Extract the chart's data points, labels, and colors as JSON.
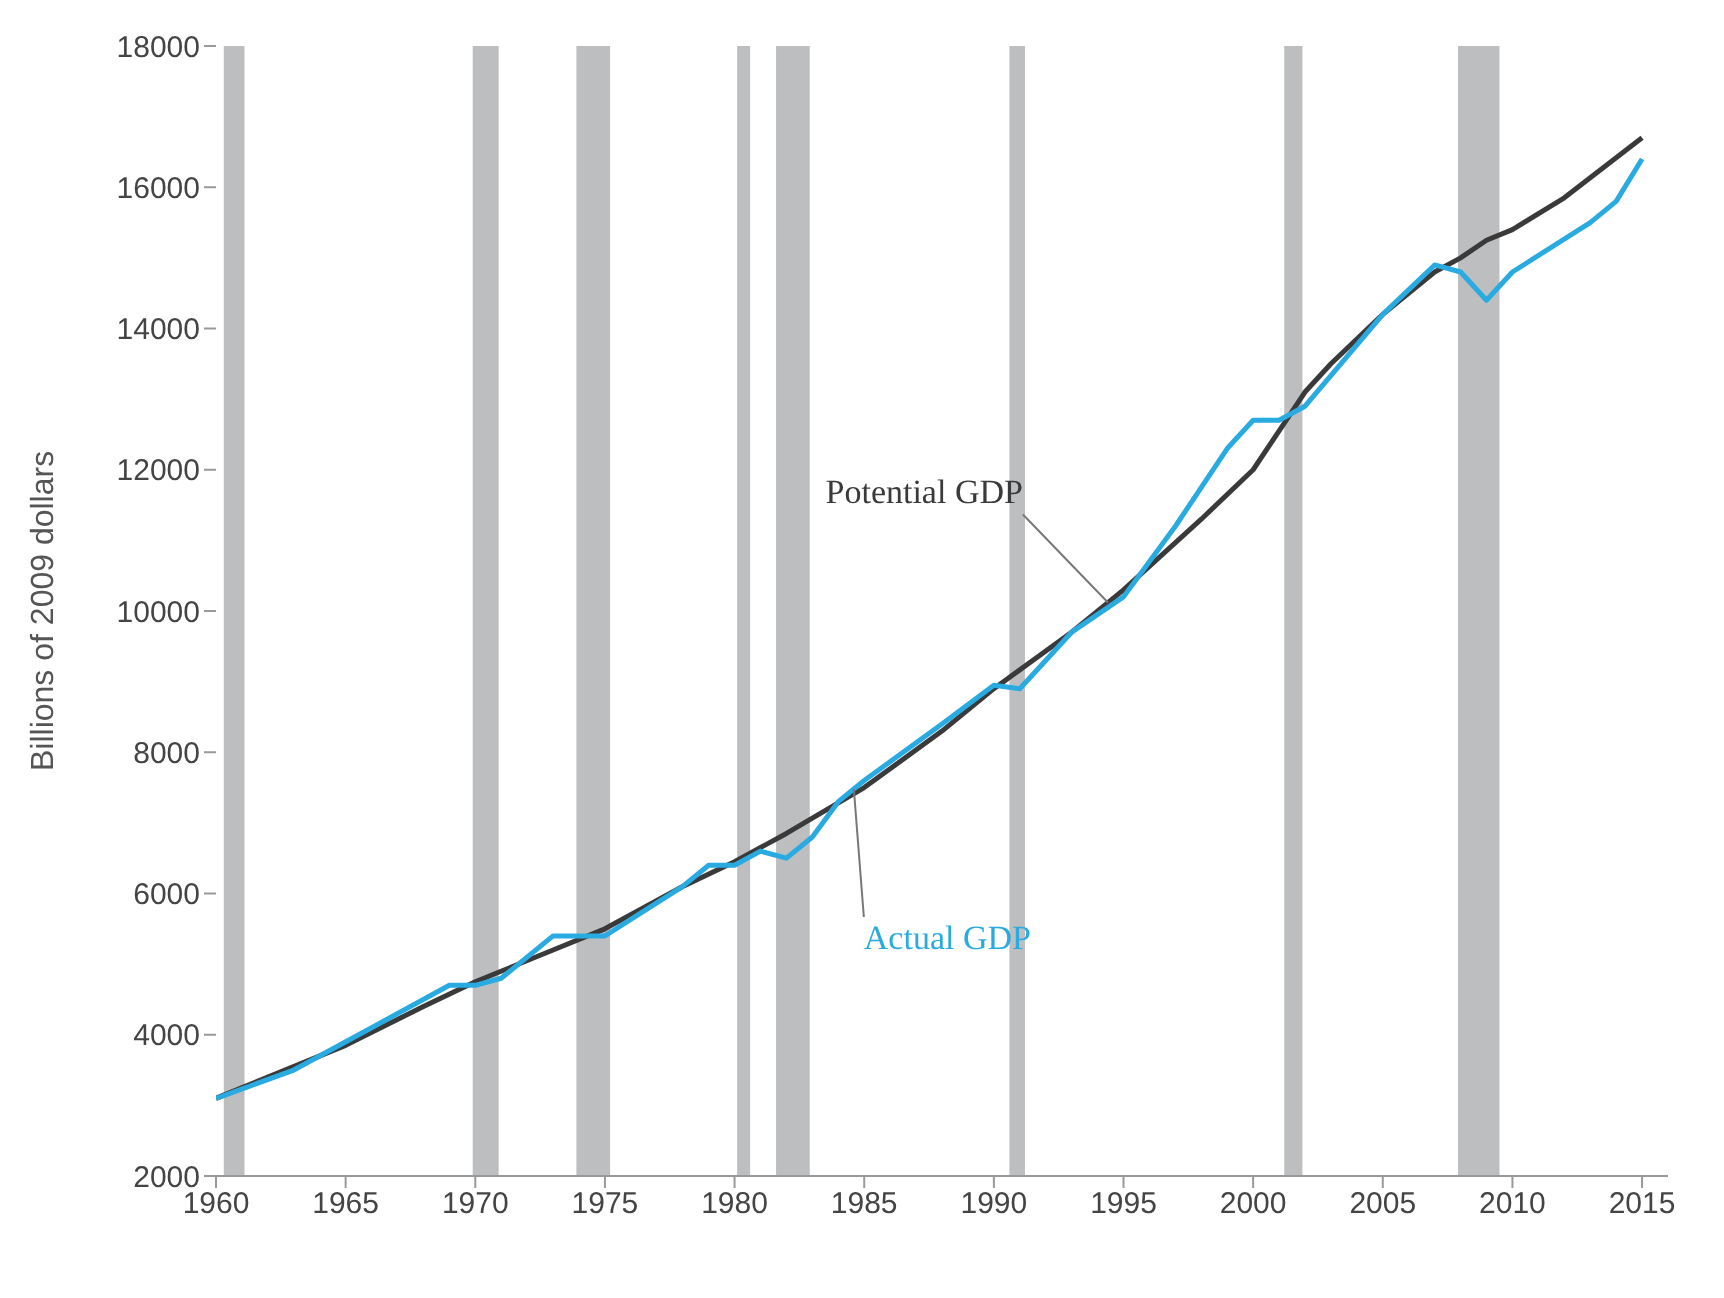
{
  "chart_data": {
    "type": "line",
    "ylabel": "Billions of 2009 dollars",
    "xlim": [
      1960,
      2016
    ],
    "xticks": [
      1960,
      1965,
      1970,
      1975,
      1980,
      1985,
      1990,
      1995,
      2000,
      2005,
      2010,
      2015
    ],
    "ylim": [
      2000,
      18000
    ],
    "yticks": [
      2000,
      4000,
      6000,
      8000,
      10000,
      12000,
      14000,
      16000,
      18000
    ],
    "grid": false,
    "legend": false,
    "marker": "none",
    "line_style": "solid",
    "bands": [
      {
        "axis": "x",
        "from": 1960.3,
        "to": 1961.1,
        "color": "#bcbec0"
      },
      {
        "axis": "x",
        "from": 1969.9,
        "to": 1970.9,
        "color": "#bcbec0"
      },
      {
        "axis": "x",
        "from": 1973.9,
        "to": 1975.2,
        "color": "#bcbec0"
      },
      {
        "axis": "x",
        "from": 1980.1,
        "to": 1980.6,
        "color": "#bcbec0"
      },
      {
        "axis": "x",
        "from": 1981.6,
        "to": 1982.9,
        "color": "#bcbec0"
      },
      {
        "axis": "x",
        "from": 1990.6,
        "to": 1991.2,
        "color": "#bcbec0"
      },
      {
        "axis": "x",
        "from": 2001.2,
        "to": 2001.9,
        "color": "#bcbec0"
      },
      {
        "axis": "x",
        "from": 2007.9,
        "to": 2009.5,
        "color": "#bcbec0"
      }
    ],
    "series": [
      {
        "color": "#3a3a3a",
        "x": [
          1960,
          1962,
          1965,
          1968,
          1970,
          1973,
          1975,
          1978,
          1980,
          1982,
          1985,
          1988,
          1990,
          1993,
          1995,
          1998,
          2000,
          2002,
          2003,
          2005,
          2007,
          2008,
          2009,
          2010,
          2012,
          2015
        ],
        "values": [
          3100,
          3400,
          3850,
          4400,
          4750,
          5200,
          5500,
          6100,
          6450,
          6850,
          7500,
          8300,
          8900,
          9700,
          10300,
          11300,
          12000,
          13100,
          13500,
          14200,
          14800,
          15000,
          15250,
          15400,
          15850,
          16700
        ]
      },
      {
        "color": "#29abe2",
        "x": [
          1960,
          1963,
          1966,
          1969,
          1970,
          1971,
          1973,
          1974,
          1975,
          1978,
          1979,
          1980,
          1981,
          1982,
          1983,
          1984,
          1985,
          1988,
          1990,
          1991,
          1993,
          1995,
          1997,
          1999,
          2000,
          2001,
          2002,
          2005,
          2007,
          2008,
          2009,
          2010,
          2013,
          2014,
          2015
        ],
        "values": [
          3100,
          3500,
          4100,
          4700,
          4700,
          4800,
          5400,
          5400,
          5400,
          6100,
          6400,
          6400,
          6600,
          6500,
          6800,
          7300,
          7600,
          8400,
          8950,
          8900,
          9700,
          10200,
          11200,
          12300,
          12700,
          12700,
          12900,
          14200,
          14900,
          14800,
          14400,
          14800,
          15500,
          15800,
          16400
        ]
      }
    ],
    "annotations": [
      {
        "text": "Potential GDP",
        "x": 1994.4,
        "y": 10120
      },
      {
        "text": "Actual GDP",
        "x": 1984.6,
        "y": 7480
      }
    ]
  }
}
